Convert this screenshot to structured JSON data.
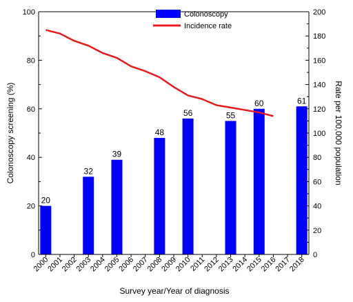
{
  "chart_data": {
    "type": "bar",
    "categories": [
      "2000",
      "2001",
      "2002",
      "2003",
      "2004",
      "2005",
      "2006",
      "2007",
      "2008",
      "2009",
      "2010",
      "2011",
      "2012",
      "2013",
      "2014",
      "2015",
      "2016",
      "2017",
      "2018"
    ],
    "series": [
      {
        "name": "Colonoscopy",
        "type": "bar",
        "axis": "left",
        "color": "#0000ff",
        "values": [
          20,
          null,
          null,
          32,
          null,
          39,
          null,
          null,
          48,
          null,
          56,
          null,
          null,
          55,
          null,
          60,
          null,
          null,
          61
        ]
      },
      {
        "name": "Incidence rate",
        "type": "line",
        "axis": "right",
        "color": "#e8191c",
        "values": [
          185,
          182,
          176,
          172,
          166,
          162,
          155,
          151,
          146,
          138,
          131,
          128,
          123,
          121,
          119,
          117,
          114,
          null,
          null
        ]
      }
    ],
    "bar_labels": [
      "20",
      "32",
      "39",
      "48",
      "56",
      "55",
      "60",
      "61"
    ],
    "xlabel": "Survey year/Year of diagnosis",
    "ylabel": "Colonoscopy screening (%)",
    "y2label": "Rate per 100,000 population",
    "ylim": [
      0,
      100
    ],
    "y2lim": [
      0,
      200
    ],
    "yticks": [
      0,
      20,
      40,
      60,
      80,
      100
    ],
    "y2ticks": [
      0,
      20,
      40,
      60,
      80,
      100,
      120,
      140,
      160,
      180,
      200
    ],
    "legend_position": "top-center",
    "grid": false
  }
}
